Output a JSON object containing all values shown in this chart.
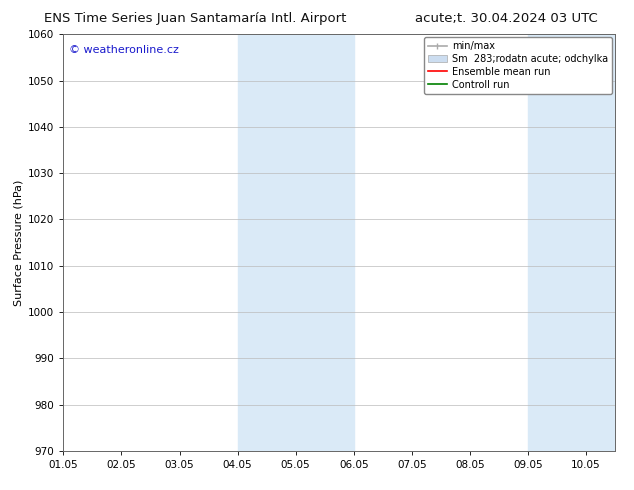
{
  "title_left": "ENS Time Series Juan Santamaría Intl. Airport",
  "title_right": "acute;t. 30.04.2024 03 UTC",
  "ylabel": "Surface Pressure (hPa)",
  "watermark": "© weatheronline.cz",
  "watermark_color": "#1a1acc",
  "xlim_start": 0.0,
  "xlim_end": 9.5,
  "ylim_bottom": 970,
  "ylim_top": 1060,
  "yticks": [
    970,
    980,
    990,
    1000,
    1010,
    1020,
    1030,
    1040,
    1050,
    1060
  ],
  "xtick_labels": [
    "01.05",
    "02.05",
    "03.05",
    "04.05",
    "05.05",
    "06.05",
    "07.05",
    "08.05",
    "09.05",
    "10.05"
  ],
  "shaded_bands": [
    {
      "xmin": 3.0,
      "xmax": 5.0,
      "color": "#daeaf7"
    },
    {
      "xmin": 8.0,
      "xmax": 9.5,
      "color": "#daeaf7"
    }
  ],
  "legend_entries": [
    {
      "label": "min/max",
      "color": "#aaaaaa",
      "lw": 1.2,
      "ls": "-",
      "type": "minmax"
    },
    {
      "label": "Sm  283;rodatn acute; odchylka",
      "color": "#ccddf0",
      "lw": 6,
      "ls": "-",
      "type": "patch"
    },
    {
      "label": "Ensemble mean run",
      "color": "#ff0000",
      "lw": 1.2,
      "ls": "-",
      "type": "line"
    },
    {
      "label": "Controll run",
      "color": "#008000",
      "lw": 1.2,
      "ls": "-",
      "type": "line"
    }
  ],
  "bg_color": "#ffffff",
  "grid_color": "#bbbbbb",
  "title_fontsize": 9.5,
  "ylabel_fontsize": 8,
  "tick_fontsize": 7.5,
  "legend_fontsize": 7,
  "watermark_fontsize": 8
}
